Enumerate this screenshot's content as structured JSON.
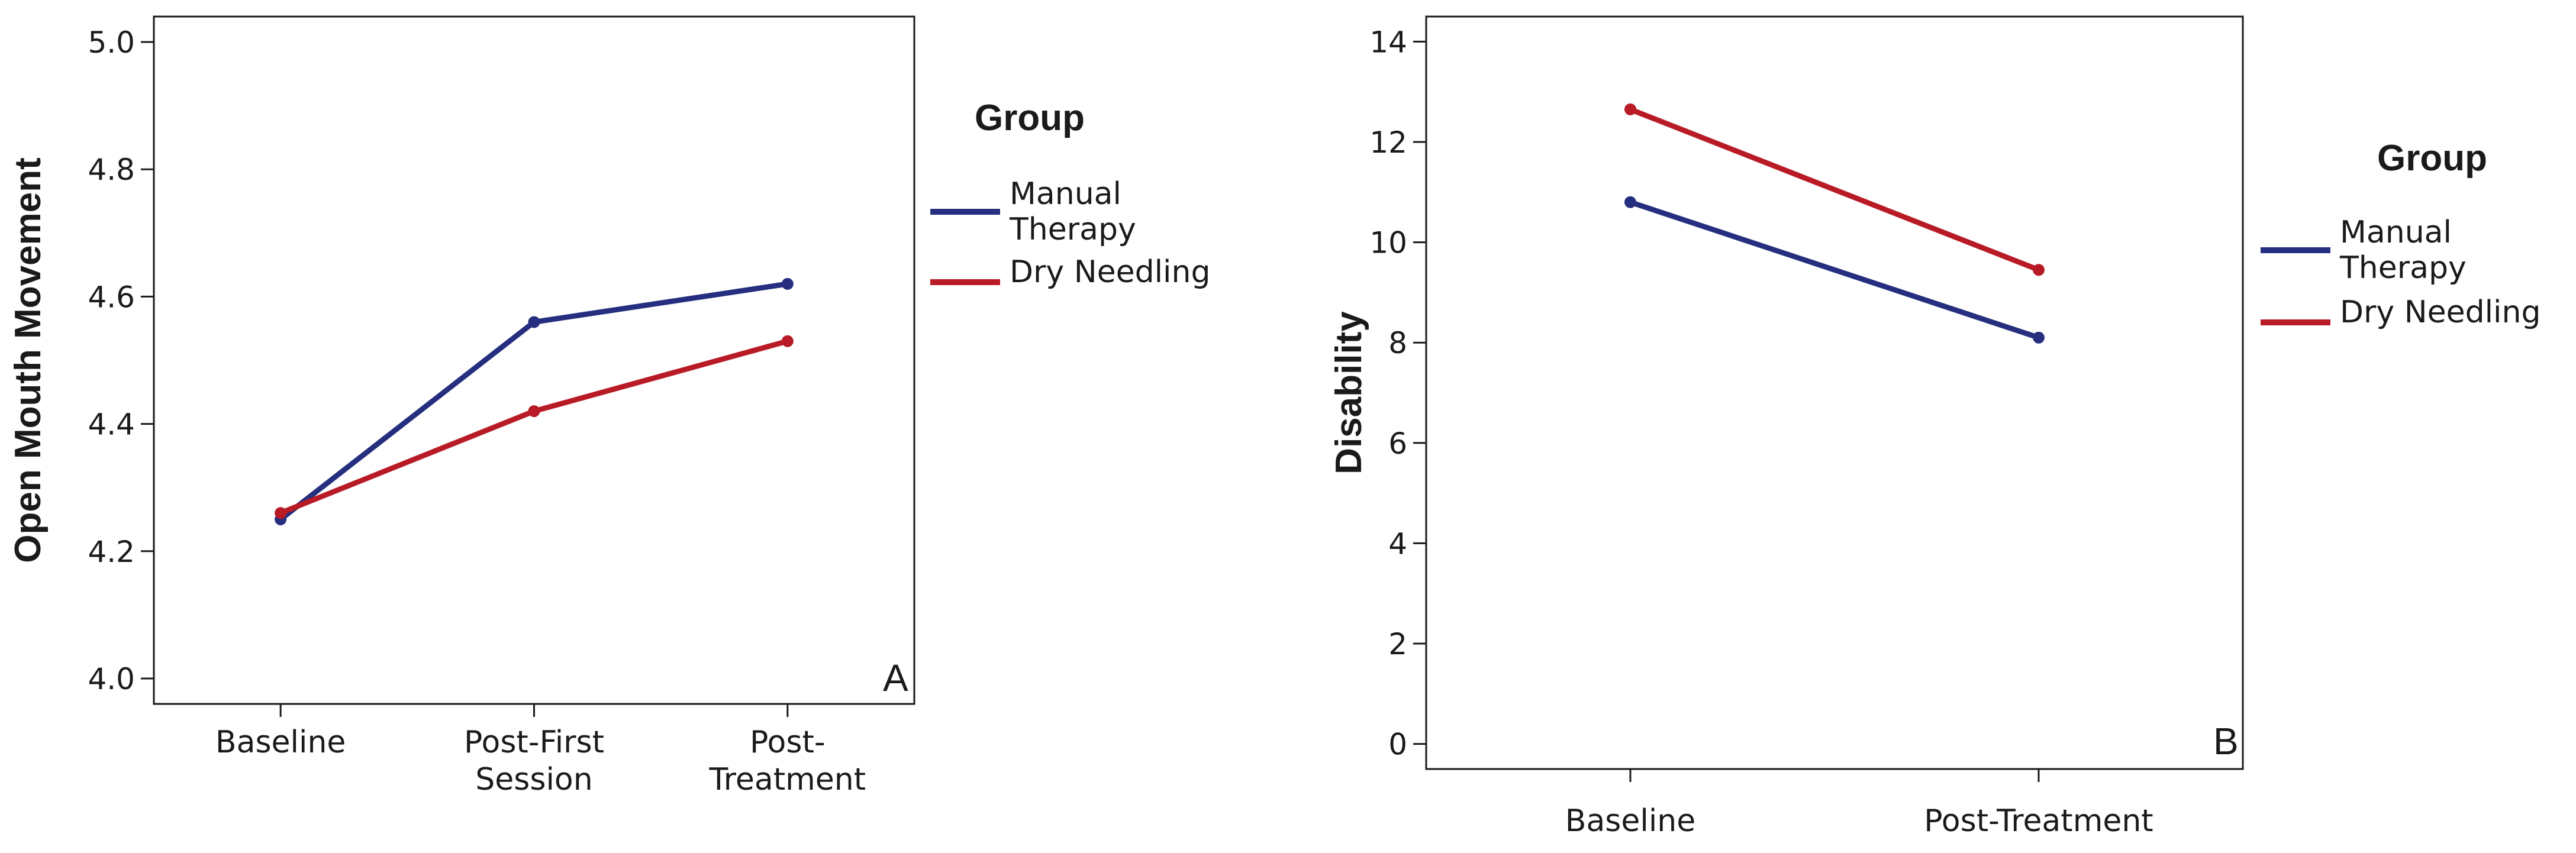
{
  "chart_data": [
    {
      "type": "line",
      "panel_label": "A",
      "ylabel": "Open Mouth Movement",
      "xlabel": "",
      "ylim": [
        3.96,
        5.04
      ],
      "yticks": [
        "4.0",
        "4.2",
        "4.4",
        "4.6",
        "4.8",
        "5.0"
      ],
      "ytick_values": [
        4.0,
        4.2,
        4.4,
        4.6,
        4.8,
        5.0
      ],
      "categories": [
        [
          "Baseline"
        ],
        [
          "Post-First",
          "Session"
        ],
        [
          "Post-",
          "Treatment"
        ]
      ],
      "series": [
        {
          "name": [
            "Manual",
            "Therapy"
          ],
          "color": "#262f7f",
          "values": [
            4.25,
            4.56,
            4.62
          ]
        },
        {
          "name": [
            "Dry Needling"
          ],
          "color": "#b81b26",
          "values": [
            4.26,
            4.42,
            4.53
          ]
        }
      ],
      "legend": {
        "title": "Group",
        "placement": "right"
      }
    },
    {
      "type": "line",
      "panel_label": "B",
      "ylabel": "Disability",
      "xlabel": "",
      "ylim": [
        -0.5,
        14.5
      ],
      "yticks": [
        "0",
        "2",
        "4",
        "6",
        "8",
        "10",
        "12",
        "14"
      ],
      "ytick_values": [
        0,
        2,
        4,
        6,
        8,
        10,
        12,
        14
      ],
      "categories": [
        [
          "Baseline"
        ],
        [
          "Post-Treatment"
        ]
      ],
      "series": [
        {
          "name": [
            "Manual",
            "Therapy"
          ],
          "color": "#262f7f",
          "values": [
            10.8,
            8.1
          ]
        },
        {
          "name": [
            "Dry Needling"
          ],
          "color": "#b81b26",
          "values": [
            12.65,
            9.45
          ]
        }
      ],
      "legend": {
        "title": "Group",
        "placement": "right"
      }
    }
  ]
}
